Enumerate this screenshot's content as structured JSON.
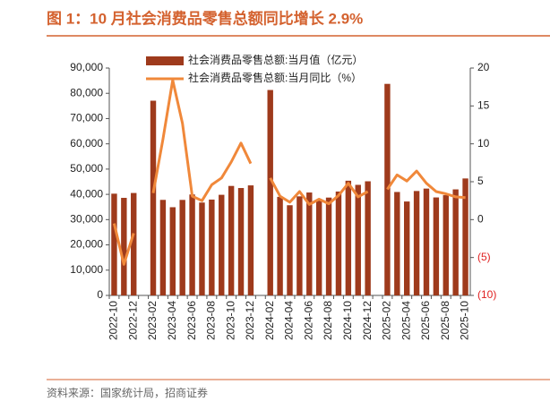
{
  "chart_data": {
    "type": "bar-line",
    "title": "图 1：10 月社会消费品零售总额同比增长 2.9%",
    "title_color": "#d4622f",
    "source": "资料来源：国家统计局，招商证券",
    "categories": [
      "2022-10",
      null,
      "2022-12",
      null,
      "2023-02",
      null,
      "2023-04",
      null,
      "2023-06",
      null,
      "2023-08",
      null,
      "2023-10",
      null,
      "2023-12",
      null,
      "2024-02",
      null,
      "2024-04",
      null,
      "2024-06",
      null,
      "2024-08",
      null,
      "2024-10",
      null,
      "2024-12",
      null,
      "2025-02",
      null,
      "2025-04",
      null,
      "2025-06",
      null,
      "2025-08",
      null,
      "2025-10"
    ],
    "series": [
      {
        "name": "社会消费品零售总额:当月值（亿元）",
        "type": "bar",
        "color": "#9e3a1c",
        "values": [
          40271,
          38615,
          40542,
          null,
          77067,
          37815,
          34910,
          37803,
          39951,
          36761,
          37933,
          39826,
          43333,
          42505,
          43550,
          null,
          81307,
          39020,
          35699,
          39211,
          40732,
          37757,
          38726,
          41112,
          45396,
          43763,
          45172,
          null,
          83731,
          40940,
          37174,
          41326,
          42287,
          38780,
          39668,
          41971,
          46291
        ]
      },
      {
        "name": "社会消费品零售总额:当月同比（%）",
        "type": "line",
        "axis": "y2",
        "color": "#f0883a",
        "values": [
          -0.5,
          -5.9,
          -1.8,
          null,
          3.5,
          10.6,
          18.4,
          12.7,
          3.1,
          2.5,
          4.6,
          5.5,
          7.6,
          10.1,
          7.4,
          null,
          5.5,
          3.1,
          2.3,
          3.7,
          2.0,
          2.7,
          2.1,
          3.2,
          4.8,
          3.0,
          3.7,
          null,
          4.0,
          5.9,
          5.1,
          6.4,
          4.8,
          3.7,
          3.4,
          3.0,
          2.9
        ]
      }
    ],
    "ylim": [
      0,
      90000
    ],
    "yticks": [
      0,
      {
        "value": 10000,
        "label": "10,000"
      },
      {
        "value": 20000,
        "label": "20,000"
      },
      {
        "value": 30000,
        "label": "30,000"
      },
      {
        "value": 40000,
        "label": "40,000"
      },
      {
        "value": 50000,
        "label": "50,000"
      },
      {
        "value": 60000,
        "label": "60,000"
      },
      {
        "value": 70000,
        "label": "70,000"
      },
      {
        "value": 80000,
        "label": "80,000"
      },
      {
        "value": 90000,
        "label": "90,000"
      }
    ],
    "y2lim": [
      -10,
      20
    ],
    "y2ticks": [
      {
        "value": -10,
        "label": "(10)"
      },
      {
        "value": -5,
        "label": "(5)"
      },
      0,
      5,
      10,
      15,
      20
    ],
    "negative_label_color": "#e02020",
    "grid": false
  }
}
